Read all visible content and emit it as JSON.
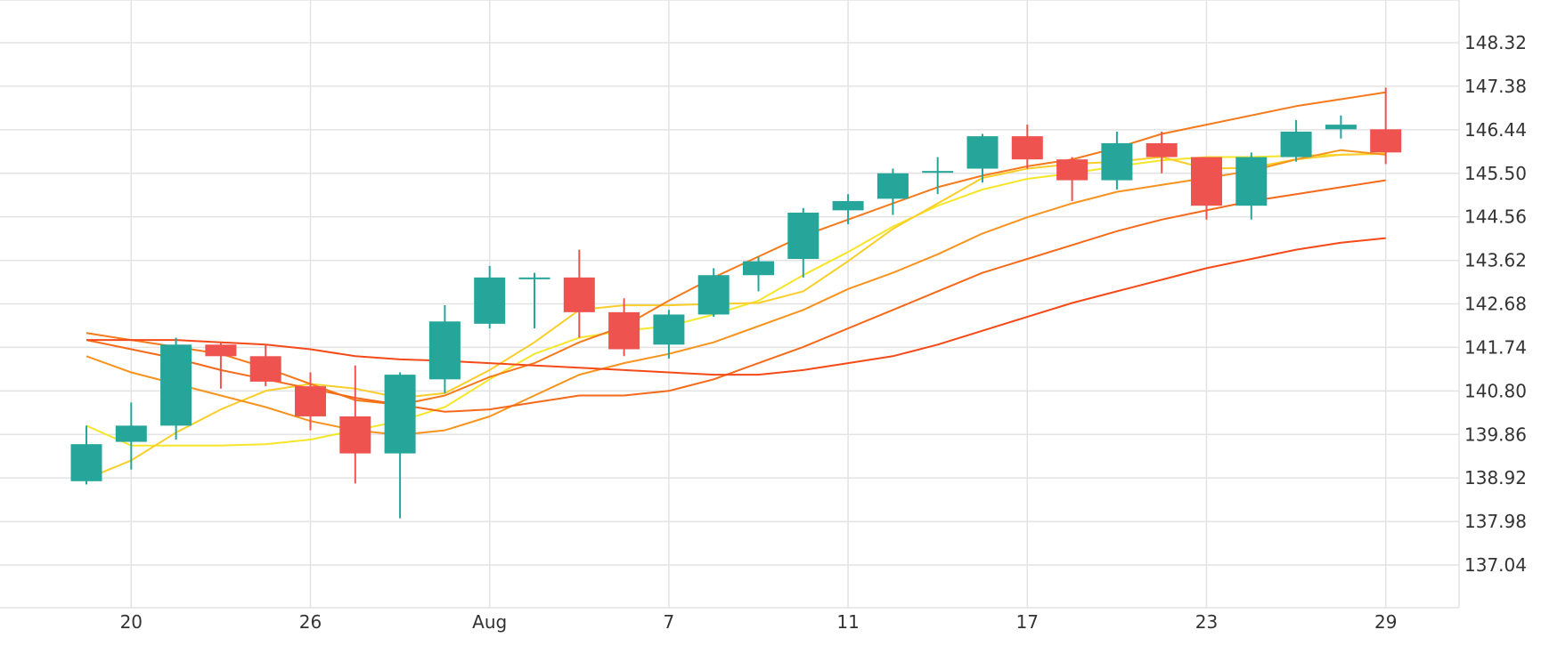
{
  "chart_data": {
    "type": "candlestick",
    "x_tick_labels": [
      "20",
      "26",
      "Aug",
      "7",
      "11",
      "17",
      "23",
      "29"
    ],
    "y_tick_labels": [
      "148.32",
      "147.38",
      "146.44",
      "145.50",
      "144.56",
      "143.62",
      "142.68",
      "141.74",
      "140.80",
      "139.86",
      "138.92",
      "137.98",
      "137.04"
    ],
    "ylim": [
      136.1,
      149.0
    ],
    "grid": true,
    "colors": {
      "up": "#26a69a",
      "down": "#ef5350",
      "grid": "#e3e3e3"
    },
    "candles": [
      {
        "o": 138.85,
        "h": 140.05,
        "l": 138.78,
        "c": 139.65
      },
      {
        "o": 139.7,
        "h": 140.55,
        "l": 139.1,
        "c": 140.05
      },
      {
        "o": 140.05,
        "h": 141.95,
        "l": 139.75,
        "c": 141.8
      },
      {
        "o": 141.8,
        "h": 141.85,
        "l": 140.85,
        "c": 141.55
      },
      {
        "o": 141.55,
        "h": 141.8,
        "l": 140.9,
        "c": 141.0
      },
      {
        "o": 140.9,
        "h": 141.2,
        "l": 139.95,
        "c": 140.25
      },
      {
        "o": 140.25,
        "h": 141.35,
        "l": 138.8,
        "c": 139.45
      },
      {
        "o": 139.45,
        "h": 141.2,
        "l": 138.05,
        "c": 141.15
      },
      {
        "o": 141.05,
        "h": 142.65,
        "l": 140.75,
        "c": 142.3
      },
      {
        "o": 142.25,
        "h": 143.5,
        "l": 142.15,
        "c": 143.25
      },
      {
        "o": 143.25,
        "h": 143.35,
        "l": 142.15,
        "c": 143.25
      },
      {
        "o": 143.25,
        "h": 143.85,
        "l": 141.95,
        "c": 142.5
      },
      {
        "o": 142.5,
        "h": 142.8,
        "l": 141.55,
        "c": 141.7
      },
      {
        "o": 141.8,
        "h": 142.55,
        "l": 141.5,
        "c": 142.45
      },
      {
        "o": 142.45,
        "h": 143.45,
        "l": 142.4,
        "c": 143.3
      },
      {
        "o": 143.3,
        "h": 143.7,
        "l": 142.95,
        "c": 143.6
      },
      {
        "o": 143.65,
        "h": 144.75,
        "l": 143.25,
        "c": 144.65
      },
      {
        "o": 144.7,
        "h": 145.05,
        "l": 144.4,
        "c": 144.9
      },
      {
        "o": 144.95,
        "h": 145.6,
        "l": 144.6,
        "c": 145.5
      },
      {
        "o": 145.55,
        "h": 145.85,
        "l": 145.05,
        "c": 145.55
      },
      {
        "o": 145.6,
        "h": 146.35,
        "l": 145.3,
        "c": 146.3
      },
      {
        "o": 146.3,
        "h": 146.55,
        "l": 145.6,
        "c": 145.8
      },
      {
        "o": 145.8,
        "h": 145.85,
        "l": 144.9,
        "c": 145.35
      },
      {
        "o": 145.35,
        "h": 146.4,
        "l": 145.15,
        "c": 146.15
      },
      {
        "o": 146.15,
        "h": 146.4,
        "l": 145.5,
        "c": 145.85
      },
      {
        "o": 145.85,
        "h": 145.85,
        "l": 144.5,
        "c": 144.8
      },
      {
        "o": 144.8,
        "h": 145.95,
        "l": 144.5,
        "c": 145.85
      },
      {
        "o": 145.85,
        "h": 146.65,
        "l": 145.75,
        "c": 146.4
      },
      {
        "o": 146.45,
        "h": 146.75,
        "l": 146.25,
        "c": 146.55
      },
      {
        "o": 146.45,
        "h": 147.35,
        "l": 145.7,
        "c": 145.95
      }
    ],
    "moving_averages": [
      {
        "color": "#f5e62a",
        "values": [
          140.05,
          139.62,
          139.62,
          139.62,
          139.65,
          139.75,
          139.95,
          140.15,
          140.45,
          141.05,
          141.6,
          141.95,
          142.1,
          142.2,
          142.45,
          142.75,
          143.3,
          143.8,
          144.35,
          144.8,
          145.15,
          145.38,
          145.5,
          145.65,
          145.78,
          145.85,
          145.85,
          145.88,
          145.9,
          145.93
        ]
      },
      {
        "color": "#f9ce2a",
        "values": [
          138.9,
          139.3,
          139.9,
          140.4,
          140.8,
          140.95,
          140.85,
          140.65,
          140.75,
          141.25,
          141.85,
          142.55,
          142.65,
          142.65,
          142.68,
          142.7,
          142.95,
          143.6,
          144.3,
          144.85,
          145.4,
          145.6,
          145.7,
          145.75,
          145.85,
          145.6,
          145.62,
          145.8,
          145.9,
          145.92
        ]
      },
      {
        "color": "#f9a21e",
        "values": null
      },
      {
        "color": "#f7931e",
        "values": [
          141.55,
          141.2,
          140.95,
          140.7,
          140.45,
          140.15,
          139.95,
          139.85,
          139.95,
          140.25,
          140.7,
          141.15,
          141.4,
          141.6,
          141.85,
          142.2,
          142.55,
          143.0,
          143.35,
          143.75,
          144.2,
          144.55,
          144.85,
          145.1,
          145.25,
          145.4,
          145.55,
          145.8,
          146.0,
          145.9
        ]
      },
      {
        "color": "#f57a1c",
        "values": [
          142.05,
          141.9,
          141.75,
          141.6,
          141.3,
          140.95,
          140.6,
          140.5,
          140.7,
          141.1,
          141.4,
          141.85,
          142.2,
          142.75,
          143.25,
          143.7,
          144.15,
          144.5,
          144.85,
          145.2,
          145.45,
          145.65,
          145.8,
          146.05,
          146.35,
          146.55,
          146.75,
          146.95,
          147.1,
          147.25
        ]
      },
      {
        "color": "#f56a1a",
        "values": [
          141.9,
          141.7,
          141.5,
          141.25,
          141.05,
          140.85,
          140.65,
          140.5,
          140.35,
          140.4,
          140.55,
          140.7,
          140.7,
          140.8,
          141.05,
          141.4,
          141.75,
          142.15,
          142.55,
          142.95,
          143.35,
          143.65,
          143.95,
          144.25,
          144.5,
          144.7,
          144.9,
          145.05,
          145.2,
          145.35
        ]
      },
      {
        "color": "#f54a18",
        "values": [
          141.9,
          141.9,
          141.9,
          141.85,
          141.8,
          141.7,
          141.55,
          141.48,
          141.45,
          141.4,
          141.35,
          141.3,
          141.25,
          141.2,
          141.15,
          141.15,
          141.25,
          141.4,
          141.55,
          141.8,
          142.1,
          142.4,
          142.7,
          142.95,
          143.2,
          143.45,
          143.65,
          143.85,
          144.0,
          144.1
        ]
      }
    ]
  }
}
